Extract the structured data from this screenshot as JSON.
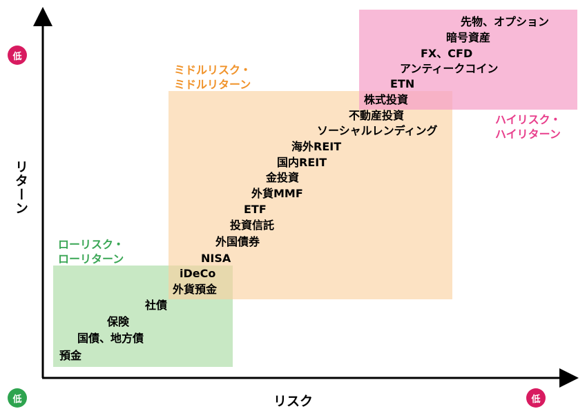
{
  "colors": {
    "low_zone_text": "#3aa655",
    "mid_zone_text": "#f0932b",
    "high_zone_text": "#e83f8c",
    "badge_pink": "#d81b60",
    "badge_green": "#2ea44f",
    "axis": "#000000"
  },
  "axes": {
    "y_title": "リターン",
    "x_title": "リスク",
    "y_badge": "低",
    "origin_badge": "低",
    "x_badge": "低"
  },
  "zones": {
    "low": [
      "ローリスク・",
      "ローリターン"
    ],
    "mid": [
      "ミドルリスク・",
      "ミドルリターン"
    ],
    "high": [
      "ハイリスク・",
      "ハイリターン"
    ]
  },
  "products": [
    "先物、オプション",
    "暗号資産",
    "FX、CFD",
    "アンティークコイン",
    "ETN",
    "株式投資",
    "不動産投資",
    "ソーシャルレンディング",
    "海外REIT",
    "国内REIT",
    "金投資",
    "外貨MMF",
    "ETF",
    "投資信託",
    "外国債券",
    "NISA",
    "iDeCo",
    "外貨預金",
    "社債",
    "保険",
    "国債、地方債",
    "預金"
  ]
}
